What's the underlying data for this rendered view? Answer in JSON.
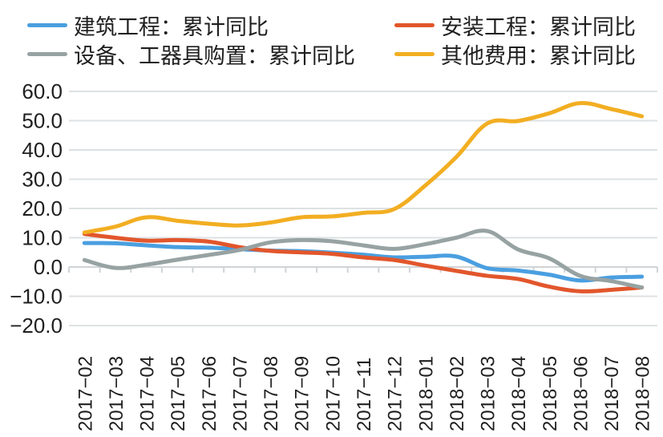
{
  "chart_data": {
    "type": "line",
    "title": "",
    "xlabel": "",
    "ylabel": "",
    "ylim": [
      -20,
      60
    ],
    "yticks": [
      "60.0",
      "50.0",
      "40.0",
      "30.0",
      "20.0",
      "10.0",
      "0.0",
      "-10.0",
      "-20.0"
    ],
    "ytick_values": [
      60,
      50,
      40,
      30,
      20,
      10,
      0,
      -10,
      -20
    ],
    "grid": true,
    "legend_position": "top",
    "categories": [
      "2017-02",
      "2017-03",
      "2017-04",
      "2017-05",
      "2017-06",
      "2017-07",
      "2017-08",
      "2017-09",
      "2017-10",
      "2017-11",
      "2017-12",
      "2018-01",
      "2018-02",
      "2018-03",
      "2018-04",
      "2018-05",
      "2018-06",
      "2018-07",
      "2018-08"
    ],
    "series": [
      {
        "name": "建筑工程：累计同比",
        "color": "#4a9fe0",
        "values": [
          8.2,
          8.1,
          7.4,
          6.8,
          6.6,
          6.1,
          5.6,
          5.4,
          4.9,
          4.2,
          3.3,
          3.5,
          3.6,
          -0.4,
          -1.2,
          -2.6,
          -4.6,
          -3.6,
          -3.3
        ]
      },
      {
        "name": "安装工程：累计同比",
        "color": "#e2562c",
        "values": [
          11.3,
          10.0,
          9.0,
          9.2,
          8.7,
          6.8,
          5.5,
          5.0,
          4.5,
          3.3,
          2.4,
          0.5,
          -1.3,
          -3.0,
          -4.1,
          -6.7,
          -8.3,
          -7.8,
          -7.0
        ]
      },
      {
        "name": "设备、工器具购置：累计同比",
        "color": "#97a2a2",
        "values": [
          2.4,
          -0.3,
          0.8,
          2.5,
          4.1,
          5.8,
          8.4,
          9.2,
          8.8,
          7.4,
          6.2,
          7.8,
          10.0,
          12.3,
          6.0,
          3.0,
          -3.0,
          -4.8,
          -7.0
        ]
      },
      {
        "name": "其他费用：累计同比",
        "color": "#f2ae22",
        "values": [
          11.8,
          13.8,
          17.0,
          15.8,
          14.8,
          14.2,
          15.2,
          17.0,
          17.3,
          18.5,
          19.8,
          27.8,
          37.5,
          49.0,
          49.9,
          52.5,
          56.0,
          54.0,
          51.5
        ]
      }
    ]
  },
  "legend": [
    {
      "label": "建筑工程：累计同比",
      "color": "#4a9fe0"
    },
    {
      "label": "安装工程：累计同比",
      "color": "#e2562c"
    },
    {
      "label": "设备、工器具购置：累计同比",
      "color": "#97a2a2"
    },
    {
      "label": "其他费用：累计同比",
      "color": "#f2ae22"
    }
  ],
  "colors": {
    "grid": "#dde1e3",
    "axis": "#cfd4d6"
  }
}
